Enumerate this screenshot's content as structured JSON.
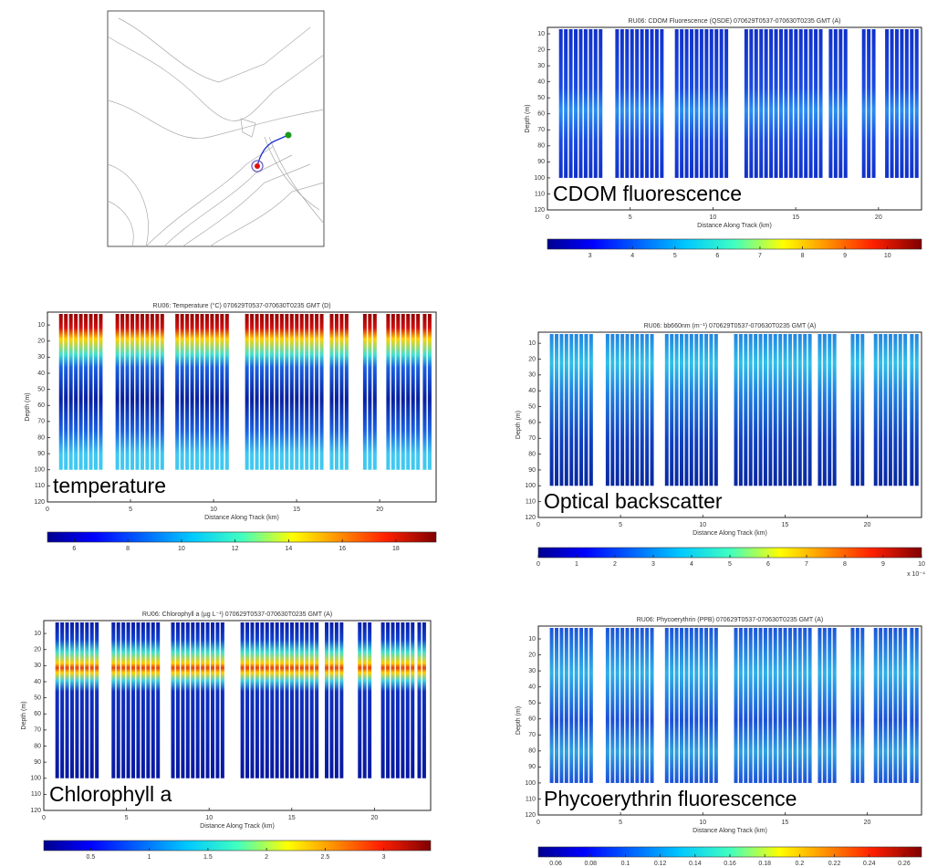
{
  "chart_data": [
    {
      "type": "section",
      "title": "RU06: CDOM Fluorescence (QSDE) 070629T0537-070630T0235 GMT (A)",
      "label": "CDOM fluorescence",
      "xlabel": "Distance Along Track (km)",
      "ylabel": "Depth (m)",
      "xlim": [
        0,
        22.6
      ],
      "xticks": [
        0,
        5,
        10,
        15,
        20
      ],
      "ylim": [
        6,
        120
      ],
      "yticks": [
        10,
        20,
        30,
        40,
        50,
        60,
        70,
        80,
        90,
        100,
        110,
        120
      ],
      "colorbar_lim": [
        2,
        10.8
      ],
      "colorbar_ticks": [
        3,
        4,
        5,
        6,
        7,
        8,
        9,
        10
      ]
    },
    {
      "type": "section",
      "title": "RU06: Temperature (°C) 070629T0537-070630T0235 GMT (D)",
      "label": "temperature",
      "xlabel": "Distance Along Track (km)",
      "ylabel": "Depth (m)",
      "xlim": [
        0,
        23.4
      ],
      "xticks": [
        0,
        5,
        10,
        15,
        20
      ],
      "ylim": [
        2,
        120
      ],
      "yticks": [
        10,
        20,
        30,
        40,
        50,
        60,
        70,
        80,
        90,
        100,
        110,
        120
      ],
      "colorbar_lim": [
        5,
        19.5
      ],
      "colorbar_ticks": [
        6,
        8,
        10,
        12,
        14,
        16,
        18
      ]
    },
    {
      "type": "section",
      "title": "RU06: bb660nm (m⁻¹) 070629T0537-070630T0235 GMT (A)",
      "label": "Optical backscatter",
      "xlabel": "Distance Along Track (km)",
      "ylabel": "Depth (m)",
      "xlim": [
        0,
        23.3
      ],
      "xticks": [
        0,
        5,
        10,
        15,
        20
      ],
      "ylim": [
        3,
        120
      ],
      "yticks": [
        10,
        20,
        30,
        40,
        50,
        60,
        70,
        80,
        90,
        100,
        110,
        120
      ],
      "colorbar_lim": [
        0,
        10
      ],
      "colorbar_ticks": [
        0,
        1,
        2,
        3,
        4,
        5,
        6,
        7,
        8,
        9,
        10
      ],
      "colorbar_multiplier": "x 10⁻⁴"
    },
    {
      "type": "section",
      "title": "RU06: Chlorophyll a (µg L⁻¹) 070629T0537-070630T0235 GMT (A)",
      "label": "Chlorophyll a",
      "xlabel": "Distance Along Track (km)",
      "ylabel": "Depth (m)",
      "xlim": [
        0,
        23.4
      ],
      "xticks": [
        0,
        5,
        10,
        15,
        20
      ],
      "ylim": [
        2,
        120
      ],
      "yticks": [
        10,
        20,
        30,
        40,
        50,
        60,
        70,
        80,
        90,
        100,
        110,
        120
      ],
      "colorbar_lim": [
        0.1,
        3.4
      ],
      "colorbar_ticks": [
        0.5,
        1,
        1.5,
        2,
        2.5,
        3
      ]
    },
    {
      "type": "section",
      "title": "RU06: Phycoerythrin (PPB) 070629T0537-070630T0235 GMT (A)",
      "label": "Phycoerythrin fluorescence",
      "xlabel": "Distance Along Track (km)",
      "ylabel": "Depth (m)",
      "xlim": [
        0,
        23.3
      ],
      "xticks": [
        0,
        5,
        10,
        15,
        20
      ],
      "ylim": [
        2,
        120
      ],
      "yticks": [
        10,
        20,
        30,
        40,
        50,
        60,
        70,
        80,
        90,
        100,
        110,
        120
      ],
      "colorbar_lim": [
        0.05,
        0.27
      ],
      "colorbar_ticks": [
        0.06,
        0.08,
        0.1,
        0.12,
        0.14,
        0.16,
        0.18,
        0.2,
        0.22,
        0.24,
        0.26
      ]
    }
  ]
}
